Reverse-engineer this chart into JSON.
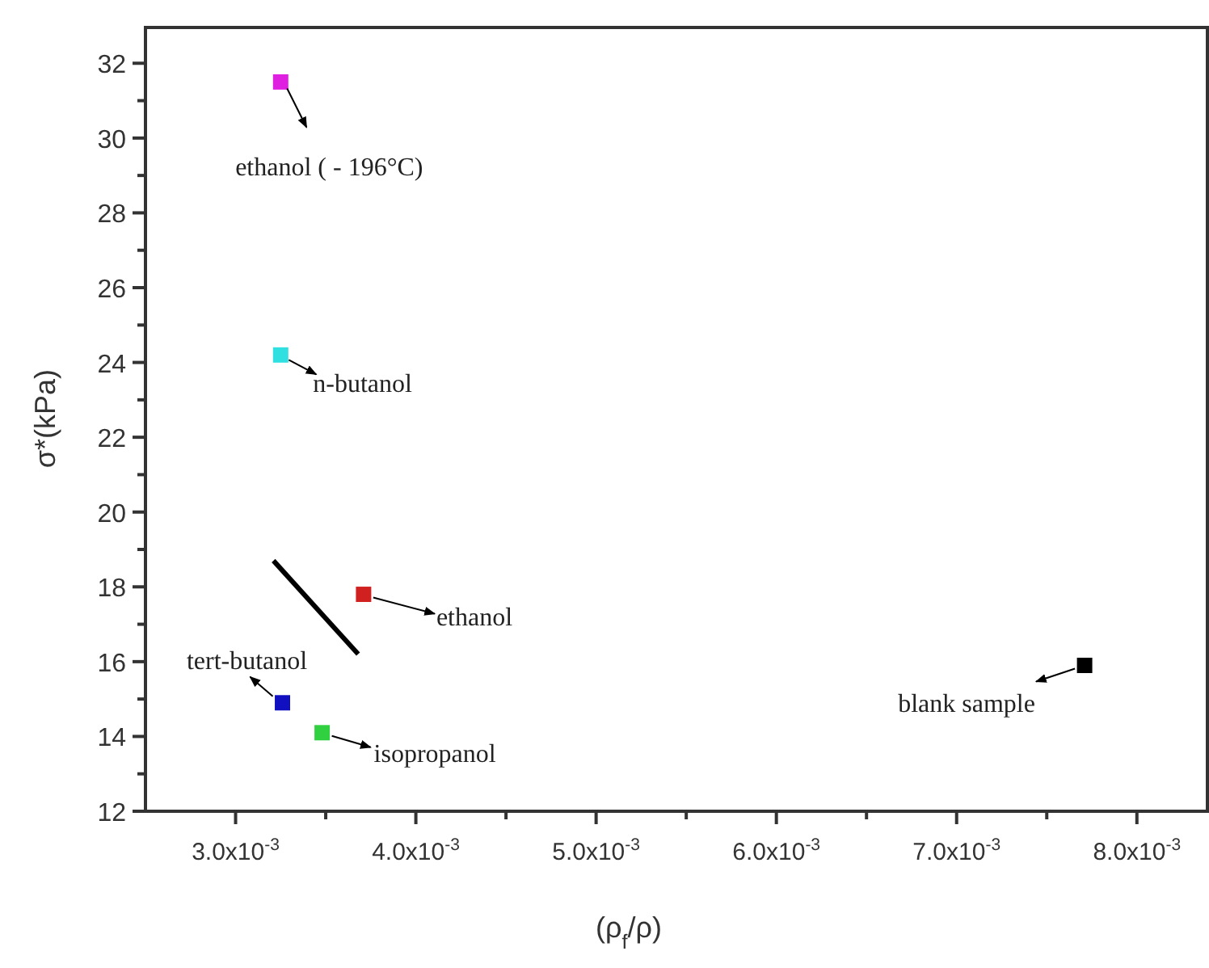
{
  "chart_data": {
    "type": "scatter",
    "xlabel": "(ρ$_{f}$/ρ)",
    "ylabel": "σ*(kPa)",
    "xlim": [
      0.0025,
      0.0084
    ],
    "ylim": [
      12,
      33
    ],
    "xticks": [
      {
        "value": 0.003,
        "label": "3.0x10$^{-3}$"
      },
      {
        "value": 0.0035,
        "label": null
      },
      {
        "value": 0.004,
        "label": "4.0x10$^{-3}$"
      },
      {
        "value": 0.0045,
        "label": null
      },
      {
        "value": 0.005,
        "label": "5.0x10$^{-3}$"
      },
      {
        "value": 0.0055,
        "label": null
      },
      {
        "value": 0.006,
        "label": "6.0x10$^{-3}$"
      },
      {
        "value": 0.0065,
        "label": null
      },
      {
        "value": 0.007,
        "label": "7.0x10$^{-3}$"
      },
      {
        "value": 0.0075,
        "label": null
      },
      {
        "value": 0.008,
        "label": "8.0x10$^{-3}$"
      }
    ],
    "yticks": [
      12,
      {
        "value": 13,
        "label": null
      },
      14,
      {
        "value": 15,
        "label": null
      },
      16,
      {
        "value": 17,
        "label": null
      },
      18,
      {
        "value": 19,
        "label": null
      },
      20,
      {
        "value": 21,
        "label": null
      },
      22,
      {
        "value": 23,
        "label": null
      },
      24,
      {
        "value": 25,
        "label": null
      },
      26,
      {
        "value": 27,
        "label": null
      },
      28,
      {
        "value": 29,
        "label": null
      },
      30,
      {
        "value": 31,
        "label": null
      },
      32
    ],
    "grid": false,
    "series": [
      {
        "marker": "square",
        "x": [
          0.00325,
          0.00325,
          0.00371,
          0.00326,
          0.00348,
          0.00771
        ],
        "values": [
          31.5,
          24.2,
          17.8,
          14.9,
          14.1,
          15.9
        ],
        "colors": [
          "#e020e0",
          "#30e0e0",
          "#d02020",
          "#1010c0",
          "#30d040",
          "#000000"
        ]
      },
      {
        "type": "line",
        "x": [
          0.00321,
          0.00368
        ],
        "values": [
          18.7,
          16.2
        ],
        "color": "#000000",
        "marker": "none"
      }
    ],
    "annotations": [
      {
        "text": "ethanol ( - 196°C)",
        "x": 0.00325,
        "y": 31.5
      },
      {
        "text": "n-butanol",
        "x": 0.00325,
        "y": 24.2
      },
      {
        "text": "ethanol",
        "x": 0.00371,
        "y": 17.8
      },
      {
        "text": "tert-butanol",
        "x": 0.00326,
        "y": 14.9
      },
      {
        "text": "isopropanol",
        "x": 0.00348,
        "y": 14.1
      },
      {
        "text": "blank sample",
        "x": 0.00771,
        "y": 15.9
      }
    ]
  }
}
